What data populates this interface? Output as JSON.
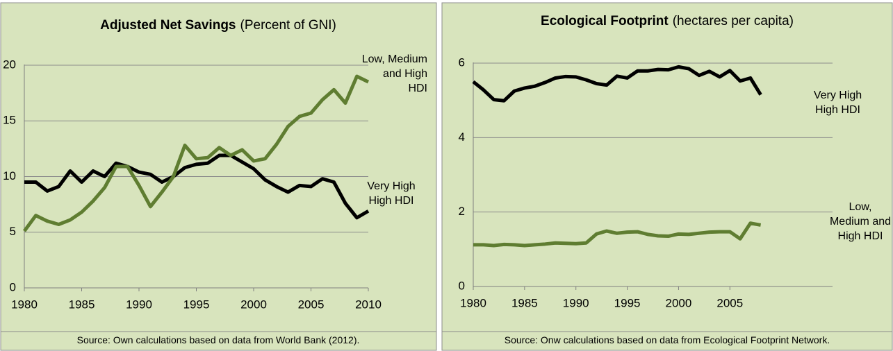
{
  "chart_data": [
    {
      "type": "line",
      "title": "Adjusted Net Savings",
      "subtitle": "(Percent of GNI)",
      "source": "Source: Own calculations based on data from World Bank (2012).",
      "x": [
        1980,
        1981,
        1982,
        1983,
        1984,
        1985,
        1986,
        1987,
        1988,
        1989,
        1990,
        1991,
        1992,
        1993,
        1994,
        1995,
        1996,
        1997,
        1998,
        1999,
        2000,
        2001,
        2002,
        2003,
        2004,
        2005,
        2006,
        2007,
        2008,
        2009,
        2010
      ],
      "series": [
        {
          "name": "Very High High HDI",
          "color": "#000000",
          "values": [
            9.5,
            9.5,
            8.7,
            9.1,
            10.5,
            9.5,
            10.5,
            10.0,
            11.2,
            10.9,
            10.4,
            10.2,
            9.5,
            10.0,
            10.8,
            11.1,
            11.2,
            11.9,
            11.9,
            11.3,
            10.7,
            9.7,
            9.1,
            8.6,
            9.2,
            9.1,
            9.8,
            9.5,
            7.6,
            6.3,
            6.9
          ]
        },
        {
          "name": "Low, Medium and High HDI",
          "color": "#5f7d31",
          "values": [
            5.1,
            6.5,
            6.0,
            5.7,
            6.1,
            6.8,
            7.8,
            9.0,
            10.9,
            10.9,
            9.2,
            7.3,
            8.6,
            10.0,
            12.8,
            11.6,
            11.7,
            12.6,
            11.9,
            12.4,
            11.4,
            11.6,
            12.9,
            14.5,
            15.4,
            15.7,
            16.9,
            17.8,
            16.6,
            19.0,
            18.5
          ]
        }
      ],
      "xlim": [
        1980,
        2010
      ],
      "xticks": [
        1980,
        1985,
        1990,
        1995,
        2000,
        2005,
        2010
      ],
      "ylim": [
        0,
        20
      ],
      "yticks": [
        0,
        5,
        10,
        15,
        20
      ],
      "grid": true
    },
    {
      "type": "line",
      "title": "Ecological Footprint",
      "subtitle": "(hectares per capita)",
      "source": "Source: Onw calculations based on data from Ecological Footprint Network.",
      "x": [
        1980,
        1981,
        1982,
        1983,
        1984,
        1985,
        1986,
        1987,
        1988,
        1989,
        1990,
        1991,
        1992,
        1993,
        1994,
        1995,
        1996,
        1997,
        1998,
        1999,
        2000,
        2001,
        2002,
        2003,
        2004,
        2005,
        2006,
        2007,
        2008
      ],
      "series": [
        {
          "name": "Very High High HDI",
          "color": "#000000",
          "values": [
            5.5,
            5.28,
            5.02,
            4.99,
            5.25,
            5.33,
            5.38,
            5.48,
            5.6,
            5.64,
            5.63,
            5.55,
            5.45,
            5.41,
            5.65,
            5.6,
            5.79,
            5.79,
            5.83,
            5.82,
            5.9,
            5.85,
            5.67,
            5.78,
            5.63,
            5.8,
            5.52,
            5.6,
            5.15
          ]
        },
        {
          "name": "Low, Medium and High HDI",
          "color": "#5f7d31",
          "values": [
            1.12,
            1.12,
            1.1,
            1.13,
            1.12,
            1.1,
            1.12,
            1.14,
            1.17,
            1.16,
            1.15,
            1.17,
            1.41,
            1.49,
            1.43,
            1.46,
            1.47,
            1.4,
            1.36,
            1.35,
            1.41,
            1.4,
            1.43,
            1.46,
            1.47,
            1.47,
            1.28,
            1.7,
            1.65
          ]
        }
      ],
      "xlim": [
        1980,
        2015
      ],
      "xticks": [
        1980,
        1985,
        1990,
        1995,
        2000,
        2005
      ],
      "ylim": [
        0,
        6
      ],
      "yticks": [
        0,
        2,
        4,
        6
      ],
      "grid": true
    }
  ]
}
